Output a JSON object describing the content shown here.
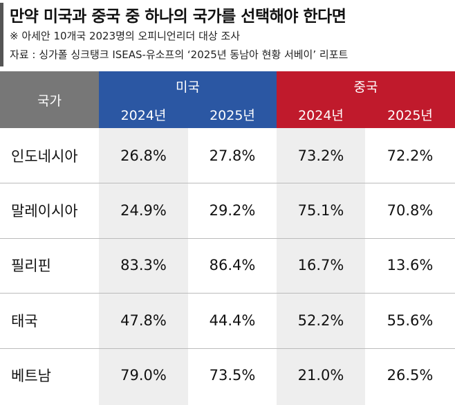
{
  "header": {
    "title": "만약 미국과 중국 중 하나의 국가를 선택해야 한다면",
    "note": "※  아세안 10개국 2023명의 오피니언리더 대상 조사",
    "source": "자료 : 싱가폴 싱크탱크 ISEAS-유소프의 ‘2025년 동남아 현황 서베이’ 리포트"
  },
  "table": {
    "country_header": "국가",
    "groups": [
      "미국",
      "중국"
    ],
    "years": [
      "2024년",
      "2025년",
      "2024년",
      "2025년"
    ],
    "rows": [
      [
        "인도네시아",
        "26.8%",
        "27.8%",
        "73.2%",
        "72.2%"
      ],
      [
        "말레이시아",
        "24.9%",
        "29.2%",
        "75.1%",
        "70.8%"
      ],
      [
        "필리핀",
        "83.3%",
        "86.4%",
        "16.7%",
        "13.6%"
      ],
      [
        "태국",
        "47.8%",
        "44.4%",
        "52.2%",
        "55.6%"
      ],
      [
        "베트남",
        "79.0%",
        "73.5%",
        "21.0%",
        "26.5%"
      ]
    ]
  }
}
